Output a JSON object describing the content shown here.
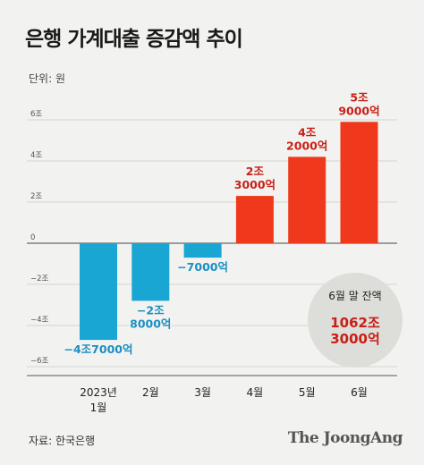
{
  "title": "은행 가계대출 증감액 추이",
  "unit_label": "단위: 원",
  "source": "자료: 한국은행",
  "brand": "The JoongAng",
  "badge": {
    "title": "6월 말 잔액",
    "line1": "1062조",
    "line2": "3000억"
  },
  "colors": {
    "negative": "#1aa6d3",
    "positive": "#f0391c",
    "positive_label": "#c81f16",
    "negative_label": "#1a8fc2"
  },
  "chart_data": {
    "type": "bar",
    "categories": [
      [
        "2023년",
        "1월"
      ],
      [
        "2월"
      ],
      [
        "3월"
      ],
      [
        "4월"
      ],
      [
        "5월"
      ],
      [
        "6월"
      ]
    ],
    "values": [
      -4.7,
      -2.8,
      -0.7,
      2.3,
      4.2,
      5.9
    ],
    "data_labels": [
      [
        "−4조7000억"
      ],
      [
        "−2조",
        "8000억"
      ],
      [
        "−7000억"
      ],
      [
        "2조",
        "3000억"
      ],
      [
        "4조",
        "2000억"
      ],
      [
        "5조",
        "9000억"
      ]
    ],
    "yticks": [
      6,
      4,
      2,
      0,
      -2,
      -4,
      -6
    ],
    "ytick_labels": [
      "6조",
      "4조",
      "2조",
      "0",
      "−2조",
      "−4조",
      "−6조"
    ],
    "ylim": [
      -6,
      6
    ],
    "grid": true
  }
}
